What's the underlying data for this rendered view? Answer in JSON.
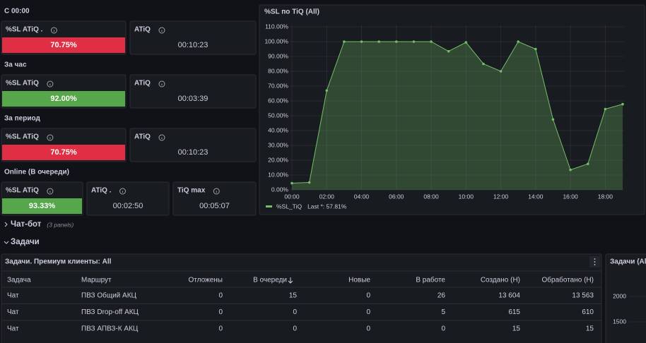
{
  "stat_sections": [
    {
      "label": "С 00:00",
      "panels": [
        {
          "title": "%SL ATiQ .",
          "value": "70.75%",
          "color": "#e02f44"
        },
        {
          "title": "ATiQ",
          "value": "00:10:23"
        }
      ]
    },
    {
      "label": "За час",
      "panels": [
        {
          "title": "%SL ATiQ",
          "value": "92.00%",
          "color": "#56a64b"
        },
        {
          "title": "ATiQ",
          "value": "00:03:39"
        }
      ]
    },
    {
      "label": "За период",
      "panels": [
        {
          "title": "%SL ATiQ",
          "value": "70.75%",
          "color": "#e02f44"
        },
        {
          "title": "ATiQ",
          "value": "00:10:23"
        }
      ]
    },
    {
      "label": "Online (В очереди)",
      "panels": [
        {
          "title": "%SL ATiQ",
          "value": "93.33%",
          "color": "#56a64b"
        },
        {
          "title": "ATiQ .",
          "value": "00:02:50"
        },
        {
          "title": "TiQ max",
          "value": "00:05:07"
        }
      ]
    }
  ],
  "chart_data": {
    "type": "line",
    "title": "%SL по TiQ (All)",
    "x": [
      0,
      1,
      2,
      3,
      4,
      5,
      6,
      7,
      8,
      9,
      10,
      11,
      12,
      13,
      14,
      15,
      16,
      17,
      18,
      19
    ],
    "series": [
      {
        "name": "%SL_TiQ",
        "color": "#73bf69",
        "values": [
          4.5,
          5,
          67,
          100,
          100,
          100,
          100,
          100,
          100,
          93.5,
          99.5,
          85,
          80,
          100,
          95,
          47.5,
          13.5,
          17.5,
          54.5,
          57.81
        ]
      }
    ],
    "legend_text": "Last *: 57.81%",
    "xlim": [
      0,
      19
    ],
    "xticks": [
      {
        "value": 0,
        "label": "00:00"
      },
      {
        "value": 2,
        "label": "02:00"
      },
      {
        "value": 4,
        "label": "04:00"
      },
      {
        "value": 6,
        "label": "06:00"
      },
      {
        "value": 8,
        "label": "08:00"
      },
      {
        "value": 10,
        "label": "10:00"
      },
      {
        "value": 12,
        "label": "12:00"
      },
      {
        "value": 14,
        "label": "14:00"
      },
      {
        "value": 16,
        "label": "16:00"
      },
      {
        "value": 18,
        "label": "18:00"
      }
    ],
    "ylim": [
      0,
      110
    ],
    "yticks": [
      {
        "value": 0,
        "label": "0.00%"
      },
      {
        "value": 10,
        "label": "10.00%"
      },
      {
        "value": 20,
        "label": "20.00%"
      },
      {
        "value": 30,
        "label": "30.00%"
      },
      {
        "value": 40,
        "label": "40.00%"
      },
      {
        "value": 50,
        "label": "50.00%"
      },
      {
        "value": 60,
        "label": "60.00%"
      },
      {
        "value": 70,
        "label": "70.00%"
      },
      {
        "value": 80,
        "label": "80.00%"
      },
      {
        "value": 90,
        "label": "90.00%"
      },
      {
        "value": 100,
        "label": "100.00%"
      },
      {
        "value": 110,
        "label": "110.00%"
      }
    ],
    "grid": true
  },
  "rows": [
    {
      "title": "Чат-бот",
      "note": "(3 panels)"
    },
    {
      "title": "Задачи"
    }
  ],
  "table": {
    "title": "Задачи. Премиум клиенты: All",
    "columns": [
      "Задача",
      "Маршрут",
      "Отложены",
      "В очереди",
      "Новые",
      "В работе",
      "Создано (Н)",
      "Обработано (Н)"
    ],
    "rows": [
      [
        "Чат",
        "ПВЗ Общий АКЦ",
        "0",
        "15",
        "0",
        "26",
        "13 604",
        "13 563"
      ],
      [
        "Чат",
        "ПВЗ Drop-off АКЦ",
        "0",
        "0",
        "0",
        "5",
        "615",
        "610"
      ],
      [
        "Чат",
        "ПВЗ АПВЗ-К АКЦ",
        "0",
        "0",
        "0",
        "0",
        "15",
        "15"
      ]
    ]
  },
  "side_panel": {
    "title": "Задачи (All",
    "yticks": [
      "2000",
      "1500"
    ]
  }
}
